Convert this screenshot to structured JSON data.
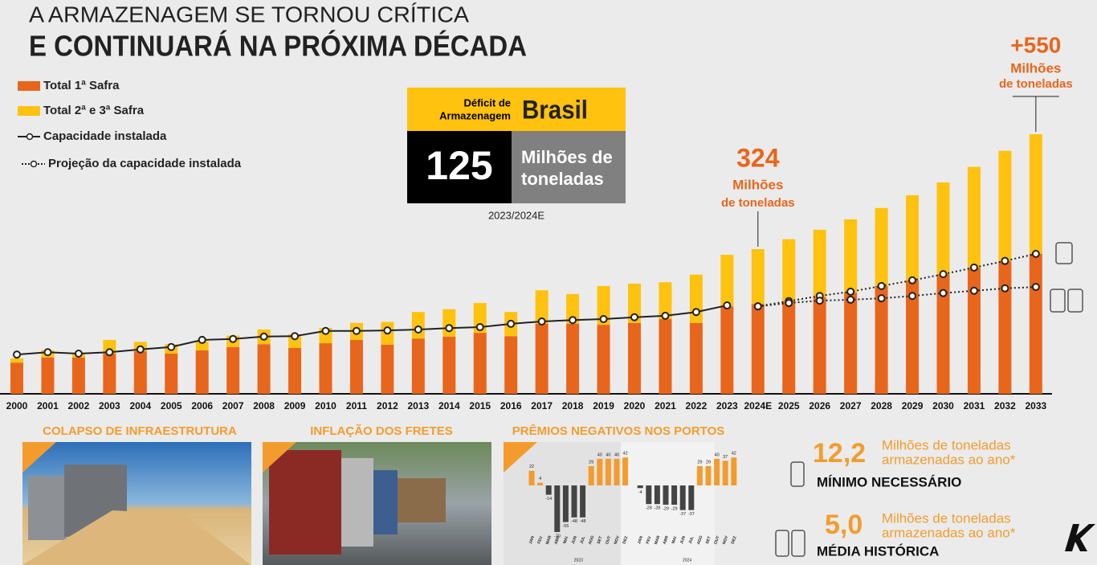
{
  "header": {
    "title_line1": "A ARMAZENAGEM SE TORNOU CRÍTICA",
    "title_line2": "E CONTINUARÁ NA PRÓXIMA DÉCADA"
  },
  "deficit": {
    "label_line1": "Déficit de",
    "label_line2": "Armazenagem",
    "country": "Brasil",
    "value": "125",
    "unit_line1": "Milhões de",
    "unit_line2": "toneladas",
    "period": "2023/2024E"
  },
  "chart_data": [
    {
      "type": "bar",
      "stacked": true,
      "categories": [
        "2000",
        "2001",
        "2002",
        "2003",
        "2004",
        "2005",
        "2006",
        "2007",
        "2008",
        "2009",
        "2010",
        "2011",
        "2012",
        "2013",
        "2014",
        "2015",
        "2016",
        "2017",
        "2018",
        "2019",
        "2020",
        "2021",
        "2022",
        "2023",
        "2024E",
        "2025",
        "2026",
        "2027",
        "2028",
        "2029",
        "2030",
        "2031",
        "2032",
        "2033"
      ],
      "ylim": [
        0,
        600
      ],
      "series": [
        {
          "name": "Total 1ª Safra",
          "type": "bar",
          "color": "#e8661c",
          "values": [
            66,
            77,
            77,
            85,
            90,
            85,
            92,
            99,
            105,
            97,
            107,
            114,
            104,
            117,
            121,
            129,
            122,
            148,
            148,
            146,
            150,
            158,
            150,
            185,
            190,
            196,
            204,
            214,
            228,
            240,
            253,
            267,
            281,
            296
          ]
        },
        {
          "name": "Total 2ª e 3ª Safra",
          "type": "bar",
          "color": "#ffc20e",
          "values": [
            9,
            15,
            9,
            29,
            20,
            20,
            19,
            24,
            31,
            29,
            32,
            36,
            48,
            56,
            58,
            63,
            51,
            71,
            63,
            82,
            83,
            78,
            102,
            109,
            116,
            131,
            143,
            155,
            165,
            180,
            194,
            213,
            233,
            253
          ]
        },
        {
          "name": "Capacidade instalada",
          "type": "line",
          "style": "solid",
          "color": "#222222",
          "values": [
            83,
            88,
            85,
            88,
            94,
            99,
            114,
            116,
            121,
            122,
            133,
            133,
            134,
            136,
            139,
            141,
            148,
            153,
            156,
            158,
            162,
            165,
            173,
            187,
            null,
            null,
            null,
            null,
            null,
            null,
            null,
            null,
            null,
            null
          ]
        },
        {
          "name": "Projeção da capacidade instalada",
          "type": "line",
          "style": "dotted",
          "color": "#222222",
          "values": [
            null,
            null,
            null,
            null,
            null,
            null,
            null,
            null,
            null,
            null,
            null,
            null,
            null,
            null,
            null,
            null,
            null,
            null,
            null,
            null,
            null,
            null,
            null,
            null,
            185,
            196,
            207,
            216,
            228,
            240,
            253,
            267,
            281,
            296
          ]
        },
        {
          "type": "line",
          "style": "dotted",
          "color": "#222222",
          "values": [
            null,
            null,
            null,
            null,
            null,
            null,
            null,
            null,
            null,
            null,
            null,
            null,
            null,
            null,
            null,
            null,
            null,
            null,
            null,
            null,
            null,
            null,
            null,
            null,
            185,
            192,
            197,
            199,
            202,
            207,
            213,
            218,
            223,
            226
          ]
        }
      ],
      "annotations": [
        {
          "category": "2024E",
          "value": "324",
          "line1": "Milhões",
          "line2": "de toneladas"
        },
        {
          "category": "2033",
          "value": "+550",
          "line1": "Milhões",
          "line2": "de toneladas"
        }
      ]
    },
    {
      "type": "bar",
      "title": "PRÊMIOS NEGATIVOS NOS PORTOS",
      "ylim": [
        -75,
        45
      ],
      "positive_color": "#f39c2d",
      "negative_color": "#444444",
      "categories": [
        "JAN",
        "FEV",
        "MAR",
        "ABR",
        "MAI",
        "JUN",
        "JUL",
        "AGO",
        "SET",
        "OUT",
        "NOV",
        "DEZ",
        "JAN",
        "FEV",
        "MAR",
        "ABR",
        "MAI",
        "JUN",
        "JUL",
        "AGO",
        "SET",
        "OUT",
        "NOV",
        "DEZ"
      ],
      "group_labels": [
        "2023",
        "2024"
      ],
      "values": [
        22,
        4,
        -14,
        -70,
        -55,
        -48,
        -48,
        29,
        40,
        40,
        40,
        42,
        -4,
        -28,
        -28,
        -29,
        -29,
        -37,
        -37,
        29,
        29,
        40,
        37,
        42
      ]
    }
  ],
  "panels": [
    {
      "title": "COLAPSO DE INFRAESTRUTURA"
    },
    {
      "title": "INFLAÇÃO DOS FRETES"
    }
  ],
  "stats": [
    {
      "value": "12,2",
      "text_line1": "Milhões de toneladas",
      "text_line2": "armazenadas ao ano*",
      "label": "MÍNIMO NECESSÁRIO"
    },
    {
      "value": "5,0",
      "text_line1": "Milhões de toneladas",
      "text_line2": "armazenadas ao ano*",
      "label": "MÉDIA HISTÓRICA"
    }
  ]
}
